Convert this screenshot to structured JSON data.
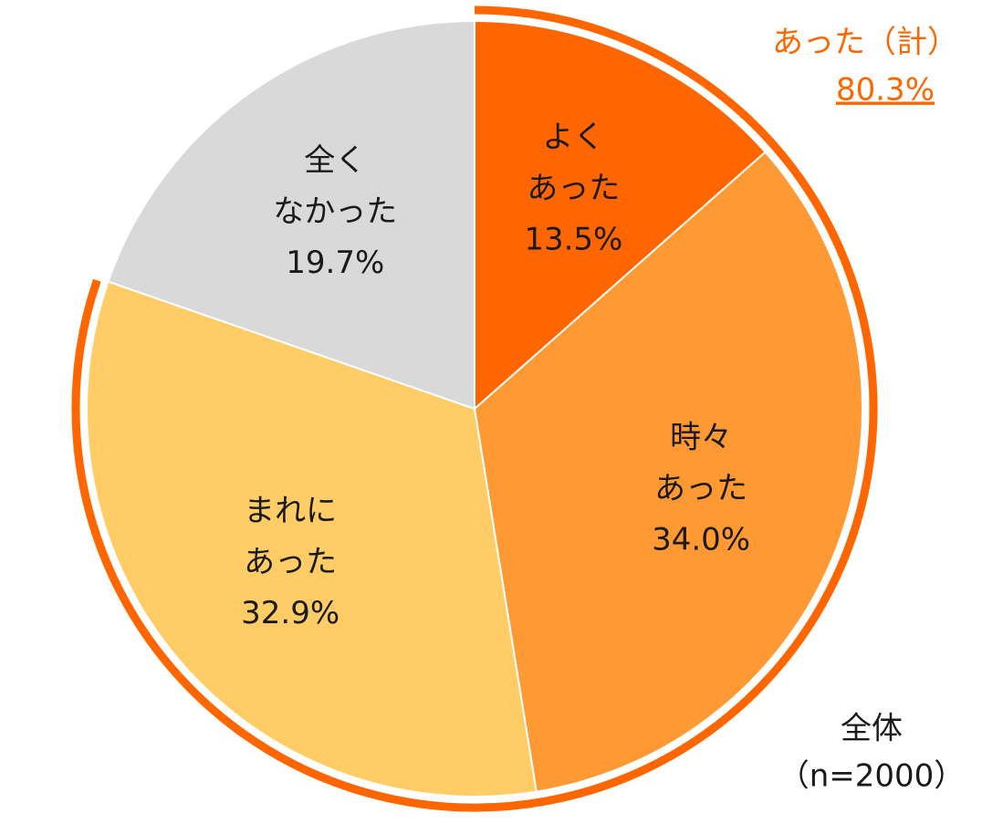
{
  "chart_data": {
    "type": "pie",
    "categories": [
      [
        "よく",
        "あった"
      ],
      [
        "時々",
        "あった"
      ],
      [
        "まれに",
        "あった"
      ],
      [
        "全く",
        "なかった"
      ]
    ],
    "values": [
      13.5,
      34.0,
      32.9,
      19.7
    ],
    "value_labels": [
      "13.5%",
      "34.0%",
      "32.9%",
      "19.7%"
    ],
    "colors": [
      "#ff6600",
      "#ff9933",
      "#ffcc66",
      "#d9d9d9"
    ],
    "total_label": "あった（計）",
    "total_value": 80.3,
    "total_value_label": "80.3%",
    "total_color": "#ff6600",
    "note": [
      "全体",
      "（n=2000）"
    ]
  }
}
